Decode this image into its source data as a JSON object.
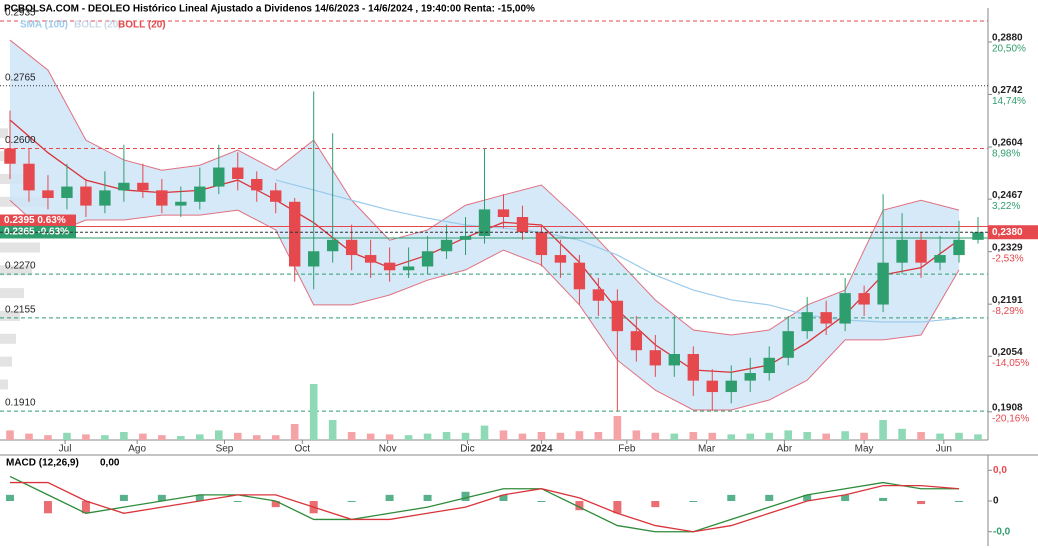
{
  "chart_data": [
    {
      "type": "candlestick",
      "title": "PCBOLSA.COM - DEOLEO Histórico Lineal Ajustado a Dividenos 14/6/2023 - 14/6/2024 , 19:40:00 Renta: -15,00%",
      "open": [
        0.26,
        0.256,
        0.249,
        0.247,
        0.25,
        0.245,
        0.249,
        0.251,
        0.249,
        0.245,
        0.246,
        0.25,
        0.255,
        0.252,
        0.249,
        0.246,
        0.229,
        0.233,
        0.236,
        0.232,
        0.23,
        0.228,
        0.229,
        0.233,
        0.236,
        0.237,
        0.244,
        0.242,
        0.238,
        0.232,
        0.23,
        0.223,
        0.22,
        0.212,
        0.207,
        0.203,
        0.206,
        0.199,
        0.196,
        0.199,
        0.201,
        0.205,
        0.212,
        0.217,
        0.214,
        0.222,
        0.219,
        0.23,
        0.236,
        0.23,
        0.232,
        0.236
      ],
      "high": [
        0.27,
        0.26,
        0.253,
        0.256,
        0.252,
        0.254,
        0.261,
        0.256,
        0.252,
        0.25,
        0.255,
        0.261,
        0.259,
        0.254,
        0.251,
        0.247,
        0.275,
        0.264,
        0.24,
        0.236,
        0.234,
        0.234,
        0.237,
        0.24,
        0.242,
        0.26,
        0.248,
        0.245,
        0.24,
        0.236,
        0.232,
        0.226,
        0.223,
        0.216,
        0.211,
        0.216,
        0.208,
        0.202,
        0.203,
        0.205,
        0.208,
        0.216,
        0.221,
        0.22,
        0.226,
        0.224,
        0.248,
        0.243,
        0.238,
        0.237,
        0.241,
        0.242
      ],
      "low": [
        0.252,
        0.246,
        0.244,
        0.244,
        0.242,
        0.243,
        0.246,
        0.247,
        0.243,
        0.242,
        0.244,
        0.248,
        0.249,
        0.246,
        0.243,
        0.225,
        0.223,
        0.23,
        0.228,
        0.226,
        0.225,
        0.226,
        0.227,
        0.231,
        0.232,
        0.235,
        0.239,
        0.236,
        0.229,
        0.226,
        0.219,
        0.216,
        0.191,
        0.204,
        0.2,
        0.2,
        0.195,
        0.191,
        0.193,
        0.196,
        0.199,
        0.203,
        0.21,
        0.211,
        0.212,
        0.216,
        0.217,
        0.227,
        0.226,
        0.228,
        0.23,
        0.235
      ],
      "close": [
        0.256,
        0.249,
        0.247,
        0.25,
        0.245,
        0.249,
        0.251,
        0.249,
        0.245,
        0.246,
        0.25,
        0.255,
        0.252,
        0.249,
        0.246,
        0.229,
        0.233,
        0.236,
        0.232,
        0.23,
        0.228,
        0.229,
        0.233,
        0.236,
        0.237,
        0.244,
        0.242,
        0.238,
        0.232,
        0.23,
        0.223,
        0.22,
        0.212,
        0.207,
        0.203,
        0.206,
        0.199,
        0.196,
        0.199,
        0.201,
        0.205,
        0.212,
        0.217,
        0.214,
        0.222,
        0.219,
        0.23,
        0.236,
        0.23,
        0.232,
        0.236,
        0.238
      ],
      "up_color": "#2f9e6e",
      "down_color": "#e5484d",
      "xlim": [
        0,
        51
      ],
      "xticks": [
        {
          "value": 2.9,
          "label": "Jul"
        },
        {
          "value": 6.7,
          "label": "Ago"
        },
        {
          "value": 11.3,
          "label": "Sep"
        },
        {
          "value": 15.4,
          "label": "Oct"
        },
        {
          "value": 19.9,
          "label": "Nov"
        },
        {
          "value": 24.1,
          "label": "Dic"
        },
        {
          "value": 28.0,
          "label": "2024"
        },
        {
          "value": 32.5,
          "label": "Feb"
        },
        {
          "value": 36.7,
          "label": "Mar"
        },
        {
          "value": 40.8,
          "label": "Abr"
        },
        {
          "value": 45.0,
          "label": "May"
        },
        {
          "value": 49.2,
          "label": "Jun"
        }
      ],
      "ylim": [
        0.1834,
        0.2964
      ],
      "yticks": [
        {
          "value": 0.288,
          "label": "0,2880"
        },
        {
          "value": 0.2742,
          "label": "0,2742"
        },
        {
          "value": 0.2604,
          "label": "0,2604"
        },
        {
          "value": 0.2467,
          "label": "0,2467"
        },
        {
          "value": 0.2329,
          "label": "0,2329"
        },
        {
          "value": 0.2191,
          "label": "0,2191"
        },
        {
          "value": 0.2054,
          "label": "0,2054"
        },
        {
          "value": 0.1908,
          "label": "0,1908"
        }
      ],
      "ytick_pct": [
        "20,50%",
        "14,74%",
        "8,98%",
        "3,22%",
        "-2,53%",
        "-8,29%",
        "-14,05%",
        "-20,16%"
      ],
      "levels": [
        {
          "value": 0.2935,
          "label": "0.2935",
          "kind": "dashed",
          "color": "#e5484d"
        },
        {
          "value": 0.2765,
          "label": "0.2765",
          "kind": "dotted",
          "color": "#333333"
        },
        {
          "value": 0.26,
          "label": "0.2600",
          "kind": "dashed",
          "color": "#e5484d"
        },
        {
          "value": 0.2395,
          "label": "0.2395  0.63%",
          "kind": "box",
          "color": "#e5484d"
        },
        {
          "value": 0.2365,
          "label": "0.2365  -0.63%",
          "kind": "box",
          "color": "#2f9e6e"
        },
        {
          "value": 0.227,
          "label": "0.2270",
          "kind": "dashed",
          "color": "#2f9e6e"
        },
        {
          "value": 0.2155,
          "label": "0.2155",
          "kind": "dashed",
          "color": "#2f9e6e"
        },
        {
          "value": 0.191,
          "label": "0.1910",
          "kind": "dashed",
          "color": "#2f9e6e"
        }
      ],
      "last_price": {
        "value": 0.238,
        "label": "0,2380",
        "color": "#e5484d"
      },
      "bollinger": {
        "band_name": "BOLL (20)",
        "line_name": "BOLL (20)",
        "band_color": "#cfe5f8",
        "edge_color": "#e07080",
        "line_color": "#d9343a",
        "x": [
          0,
          2,
          4,
          6,
          8,
          10,
          12,
          14,
          16,
          18,
          20,
          22,
          24,
          26,
          28,
          30,
          32,
          34,
          36,
          38,
          40,
          42,
          44,
          46,
          48,
          50
        ],
        "upper": [
          0.2885,
          0.2806,
          0.2622,
          0.257,
          0.2543,
          0.2556,
          0.2596,
          0.2543,
          0.2622,
          0.2464,
          0.2359,
          0.2386,
          0.2451,
          0.2478,
          0.2504,
          0.2412,
          0.2307,
          0.2202,
          0.2123,
          0.211,
          0.2123,
          0.2189,
          0.2228,
          0.2438,
          0.2464,
          0.2438
        ],
        "middle": [
          0.2675,
          0.2589,
          0.2517,
          0.2491,
          0.2484,
          0.249,
          0.2517,
          0.2465,
          0.2405,
          0.2327,
          0.2287,
          0.232,
          0.2366,
          0.2406,
          0.2399,
          0.2301,
          0.2176,
          0.2084,
          0.2018,
          0.2012,
          0.2031,
          0.209,
          0.2163,
          0.2268,
          0.2287,
          0.236
        ],
        "lower": [
          0.2464,
          0.2372,
          0.2412,
          0.2412,
          0.2425,
          0.2425,
          0.2438,
          0.2386,
          0.2189,
          0.2189,
          0.2215,
          0.2254,
          0.2281,
          0.2333,
          0.2294,
          0.2189,
          0.2044,
          0.1965,
          0.1913,
          0.1913,
          0.1939,
          0.1991,
          0.2097,
          0.2097,
          0.211,
          0.2281
        ]
      },
      "sma": {
        "name": "SMA (100)",
        "color": "#9ccbeb",
        "x": [
          0,
          2,
          4,
          6,
          8,
          10,
          12,
          14,
          16,
          18,
          20,
          22,
          24,
          26,
          28,
          30,
          32,
          34,
          36,
          38,
          40,
          42,
          44,
          46,
          48,
          50
        ],
        "values": [
          null,
          null,
          null,
          null,
          null,
          null,
          null,
          0.2517,
          0.2491,
          0.2464,
          0.2438,
          0.2417,
          0.2399,
          0.2391,
          0.238,
          0.2359,
          0.232,
          0.2267,
          0.2228,
          0.2202,
          0.2189,
          0.2162,
          0.2149,
          0.2144,
          0.2144,
          0.2154
        ]
      },
      "volume": {
        "ylim": [
          0,
          100
        ],
        "values": [
          12,
          8,
          6,
          9,
          7,
          6,
          10,
          8,
          6,
          5,
          7,
          12,
          9,
          6,
          6,
          20,
          70,
          25,
          10,
          8,
          7,
          6,
          8,
          10,
          9,
          18,
          12,
          8,
          10,
          9,
          11,
          10,
          30,
          12,
          9,
          8,
          10,
          9,
          7,
          8,
          9,
          12,
          10,
          8,
          11,
          9,
          25,
          14,
          10,
          8,
          9,
          7
        ]
      },
      "volume_profile": {
        "prices": [
          0.264,
          0.258,
          0.252,
          0.246,
          0.24,
          0.234,
          0.228,
          0.222,
          0.216,
          0.21,
          0.204,
          0.198
        ],
        "values": [
          10,
          15,
          30,
          60,
          80,
          50,
          40,
          30,
          25,
          20,
          15,
          10
        ]
      }
    },
    {
      "type": "macd",
      "label": "MACD (12,26,9)",
      "value_text": "0,00",
      "x": [
        0,
        2,
        4,
        6,
        8,
        10,
        12,
        14,
        16,
        18,
        20,
        22,
        24,
        26,
        28,
        30,
        32,
        34,
        36,
        38,
        40,
        42,
        44,
        46,
        48,
        50
      ],
      "macd": [
        0.004,
        0.001,
        -0.002,
        -0.001,
        0,
        0.001,
        0.001,
        0,
        -0.003,
        -0.003,
        -0.002,
        -0.001,
        0.0005,
        0.002,
        0.002,
        -0.001,
        -0.004,
        -0.005,
        -0.005,
        -0.003,
        -0.001,
        0.001,
        0.002,
        0.003,
        0.002,
        0.002
      ],
      "signal": [
        0.003,
        0.003,
        0,
        -0.002,
        -0.001,
        0,
        0.001,
        0.001,
        -0.001,
        -0.003,
        -0.003,
        -0.002,
        -0.001,
        0.001,
        0.002,
        0.0005,
        -0.002,
        -0.004,
        -0.005,
        -0.004,
        -0.002,
        0,
        0.001,
        0.0025,
        0.0025,
        0.002
      ],
      "histogram": [
        0.001,
        -0.002,
        -0.002,
        0.001,
        0.001,
        0.001,
        0,
        -0.001,
        -0.002,
        0,
        0.001,
        0.001,
        0.0015,
        0.001,
        0,
        -0.0015,
        -0.002,
        -0.001,
        0,
        0.001,
        0.001,
        0.001,
        0.001,
        0.0005,
        -0.0005,
        0
      ],
      "macd_color": "#2e8b3a",
      "signal_color": "#d9343a",
      "pos_color": "#2f9e6e",
      "neg_color": "#e5484d",
      "ylim": [
        -0.007,
        0.007
      ],
      "yticks": [
        {
          "value": 0.005,
          "label": "0,0"
        },
        {
          "value": 0,
          "label": "0"
        },
        {
          "value": -0.005,
          "label": "-0,0"
        }
      ]
    }
  ]
}
